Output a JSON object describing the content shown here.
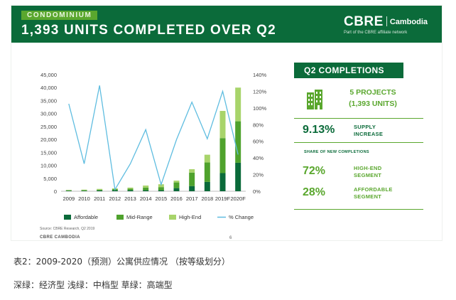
{
  "header": {
    "tag": "CONDOMINIUM",
    "headline": "1,393 UNITS COMPLETED OVER Q2",
    "logo_main": "CBRE",
    "logo_region": "Cambodia",
    "logo_sub": "Part of the CBRE affiliate network"
  },
  "side": {
    "heading": "Q2 COMPLETIONS",
    "projects_line1": "5 PROJECTS",
    "projects_line2": "(1,393 UNITS)",
    "supply_value": "9.13%",
    "supply_label1": "SUPPLY",
    "supply_label2": "INCREASE",
    "share_title": "SHARE OF NEW COMPLETIONS",
    "high_value": "72%",
    "high_label1": "HIGH-END",
    "high_label2": "SEGMENT",
    "afford_value": "28%",
    "afford_label1": "AFFORDABLE",
    "afford_label2": "SEGMENT",
    "building_icon": "building-icon"
  },
  "footer": {
    "source": "Source: CBRE Research, Q2 2019",
    "brand": "CBRE CAMBODIA",
    "page": "6"
  },
  "captions": {
    "line1": "表2：2009-2020（预测）公寓供应情况 （按等级划分）",
    "line2": "深绿：经济型 浅绿：中档型 草绿：高端型"
  },
  "colors": {
    "brand_green": "#0b6b3a",
    "affordable": "#0a6a3a",
    "midrange": "#4fa22d",
    "highend": "#a8d46b",
    "pct_line": "#5fbde0"
  },
  "chart_data": {
    "type": "bar",
    "stacked": true,
    "categories": [
      "2009",
      "2010",
      "2011",
      "2012",
      "2013",
      "2014",
      "2015",
      "2016",
      "2017",
      "2018",
      "2019F",
      "2020F"
    ],
    "series": [
      {
        "name": "Affordable",
        "values": [
          200,
          200,
          300,
          400,
          400,
          400,
          400,
          1200,
          2000,
          3600,
          7000,
          11000
        ]
      },
      {
        "name": "Mid-Range",
        "values": [
          200,
          200,
          300,
          400,
          600,
          1000,
          1200,
          2200,
          5200,
          7500,
          13500,
          16000
        ]
      },
      {
        "name": "High-End",
        "values": [
          100,
          200,
          300,
          300,
          400,
          800,
          1100,
          700,
          1300,
          3000,
          10500,
          13000
        ]
      }
    ],
    "line_series": {
      "name": "% Change",
      "axis": "right",
      "values": [
        105,
        33,
        127,
        2,
        33,
        74,
        8,
        62,
        107,
        63,
        120,
        44
      ]
    },
    "left_axis": {
      "ylim": [
        0,
        45000
      ],
      "ticks": [
        "0",
        "5,000",
        "10,000",
        "15,000",
        "20,000",
        "25,000",
        "30,000",
        "35,000",
        "40,000",
        "45,000"
      ]
    },
    "right_axis": {
      "ylim": [
        0,
        140
      ],
      "ticks": [
        "0%",
        "20%",
        "40%",
        "60%",
        "80%",
        "100%",
        "120%",
        "140%"
      ]
    },
    "legend": [
      "Affordable",
      "Mid-Range",
      "High-End",
      "% Change"
    ],
    "legend_position": "bottom",
    "grid": false
  }
}
